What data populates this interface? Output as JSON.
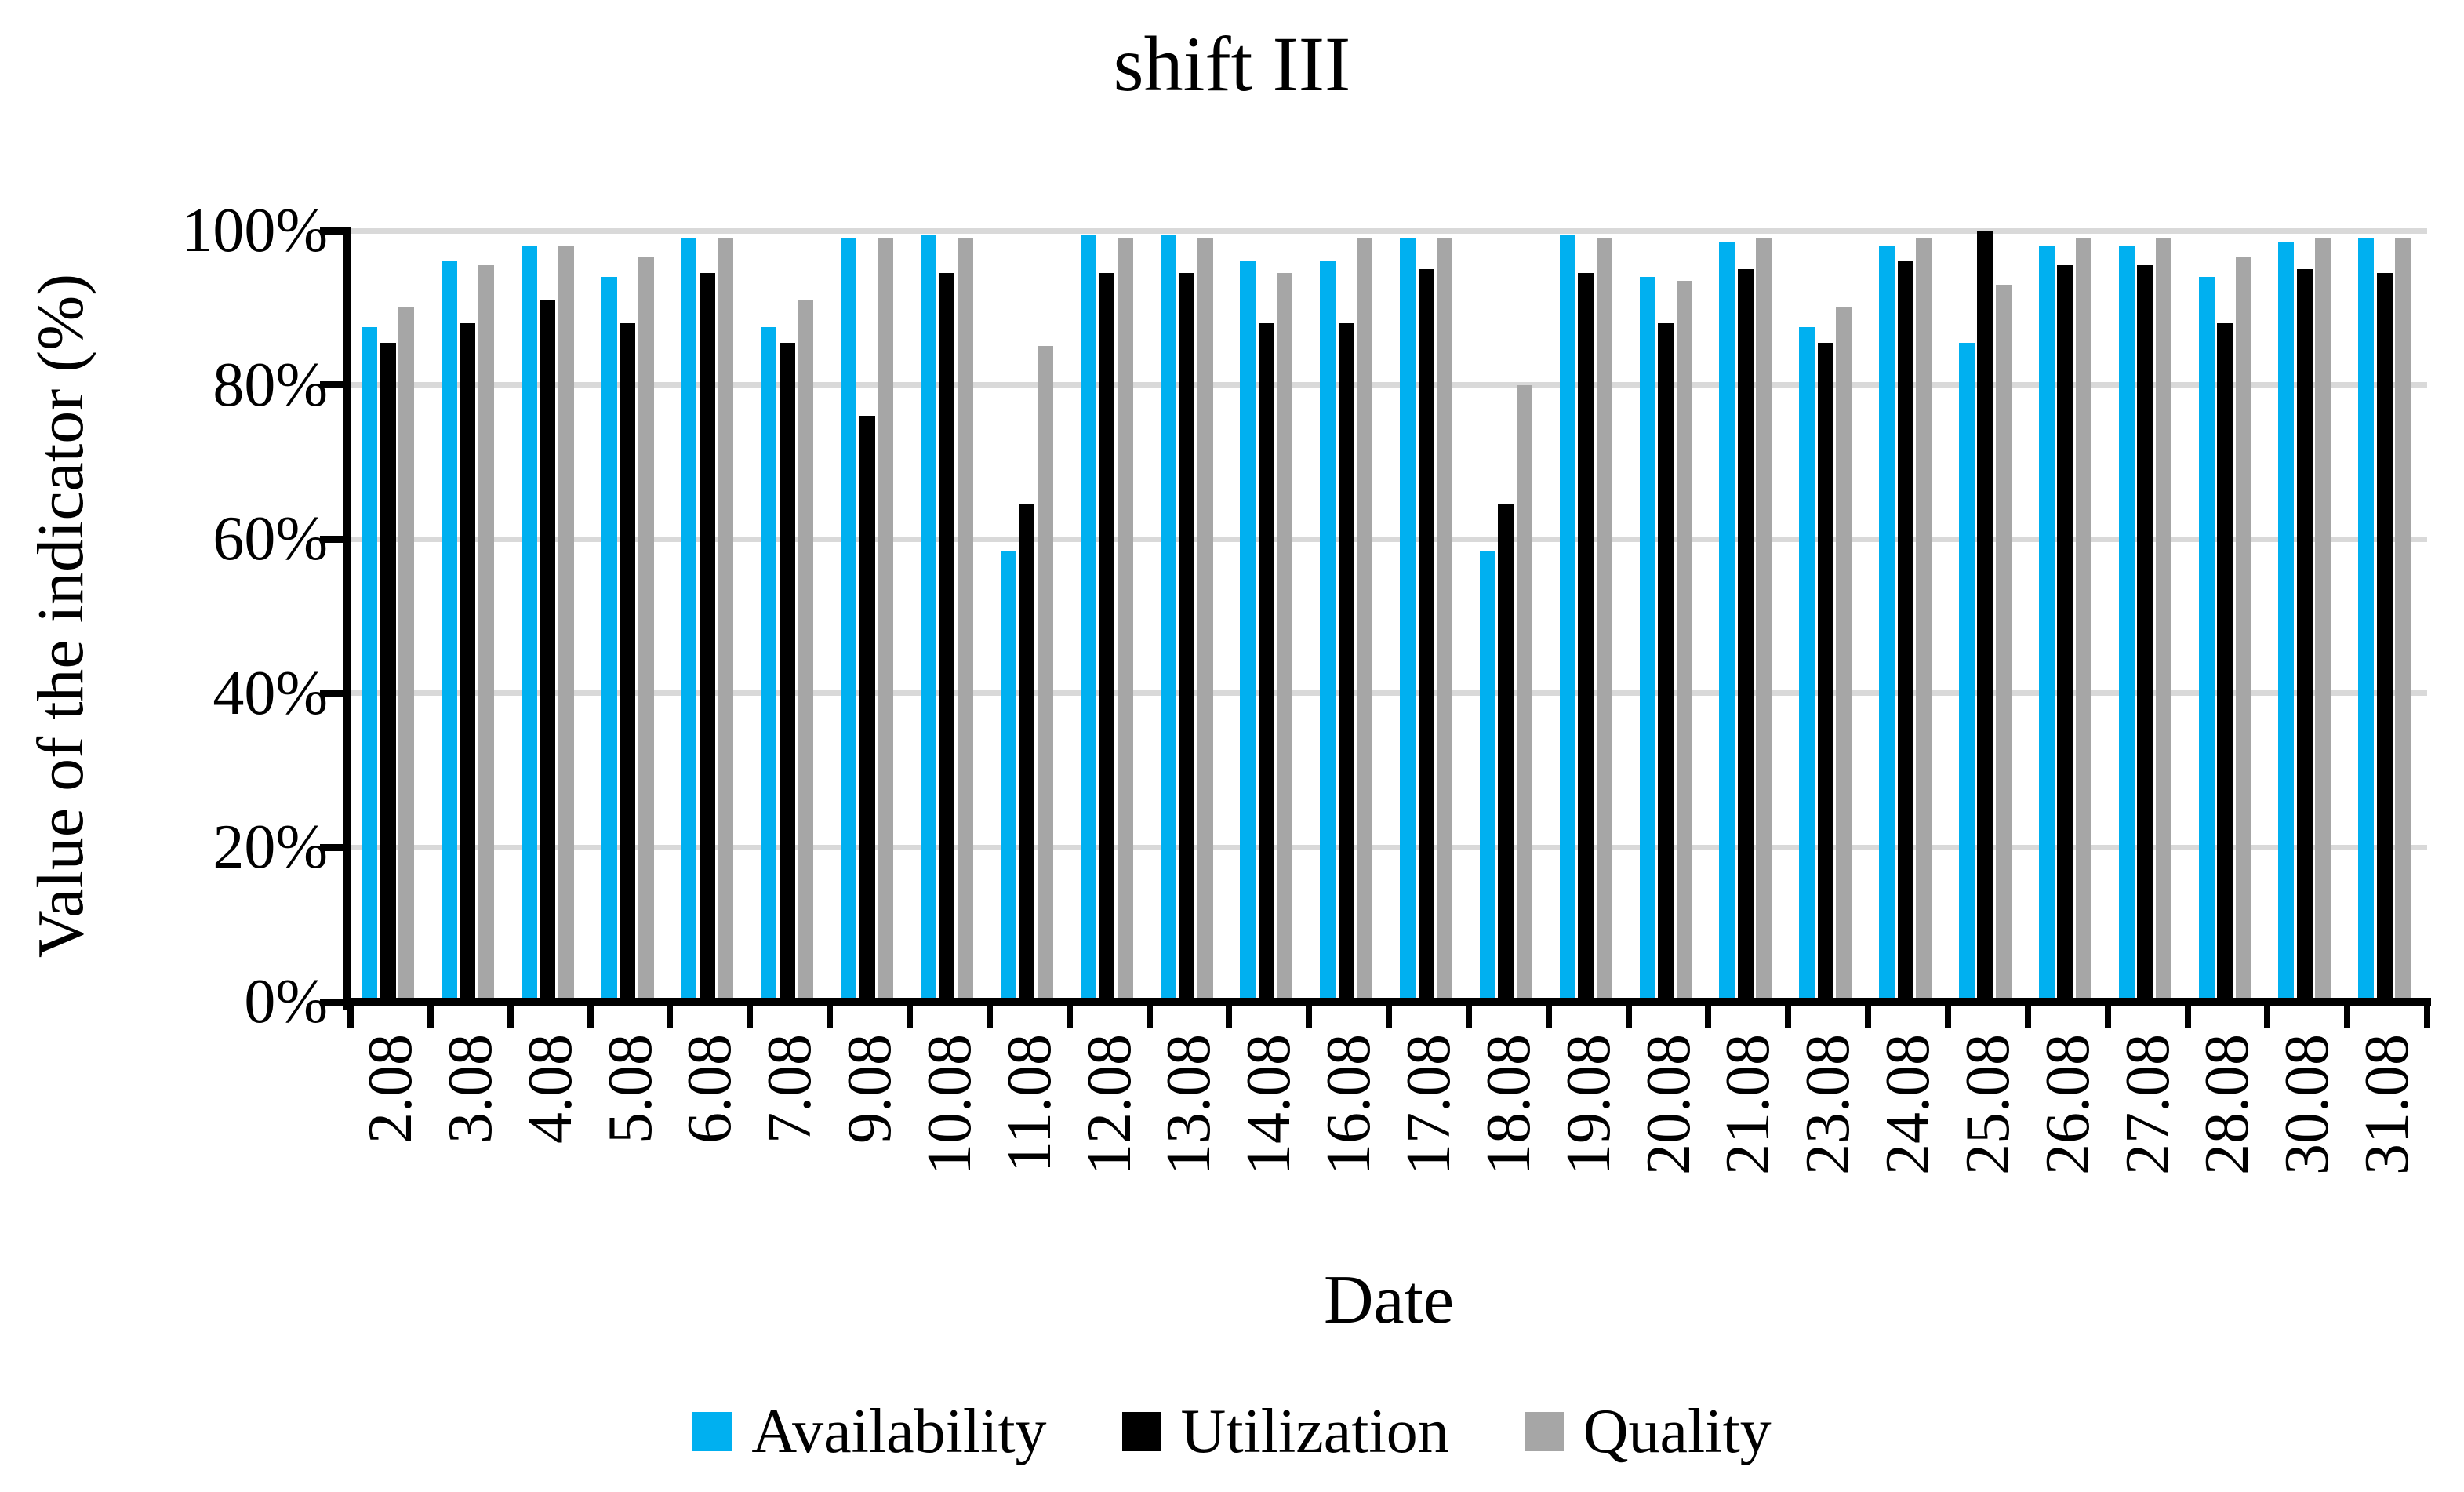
{
  "chart_data": {
    "type": "bar",
    "title": "shift III",
    "xlabel": "Date",
    "ylabel": "Value of the indicator (%)",
    "ylim": [
      0,
      100
    ],
    "ytick_percent": [
      0,
      20,
      40,
      60,
      80,
      100
    ],
    "ytick_labels": [
      "0%",
      "20%",
      "40%",
      "60%",
      "80%",
      "100%"
    ],
    "grid": "horizontal",
    "legend_position": "bottom",
    "categories": [
      "2.08",
      "3.08",
      "4.08",
      "5.08",
      "6.08",
      "7.08",
      "9.08",
      "10.08",
      "11.08",
      "12.08",
      "13.08",
      "14.08",
      "16.08",
      "17.08",
      "18.08",
      "19.08",
      "20.08",
      "21.08",
      "23.08",
      "24.08",
      "25.08",
      "26.08",
      "27.08",
      "28.08",
      "30.08",
      "31.08"
    ],
    "series": [
      {
        "name": "Availability",
        "color": "#00B0F0",
        "values": [
          87.5,
          96,
          98,
          94,
          99,
          87.5,
          99,
          99.5,
          58.5,
          99.5,
          99.5,
          96,
          96,
          99,
          58.5,
          99.5,
          94,
          98.5,
          87.5,
          98,
          85.5,
          98,
          98,
          94,
          98.5,
          99
        ]
      },
      {
        "name": "Utilization",
        "color": "#000000",
        "values": [
          85.5,
          88,
          91,
          88,
          94.5,
          85.5,
          76,
          94.5,
          64.5,
          94.5,
          94.5,
          88,
          88,
          95,
          64.5,
          94.5,
          88,
          95,
          85.5,
          96,
          100,
          95.5,
          95.5,
          88,
          95,
          94.5
        ]
      },
      {
        "name": "Quality",
        "color": "#A6A6A6",
        "values": [
          90,
          95.5,
          98,
          96.5,
          99,
          91,
          99,
          99,
          85,
          99,
          99,
          94.5,
          99,
          99,
          80,
          99,
          93.5,
          99,
          90,
          99,
          93,
          99,
          99,
          96.5,
          99,
          99
        ]
      }
    ]
  },
  "colors": {
    "gridline": "#D9D9D9",
    "axis": "#000000",
    "background": "#FFFFFF"
  }
}
